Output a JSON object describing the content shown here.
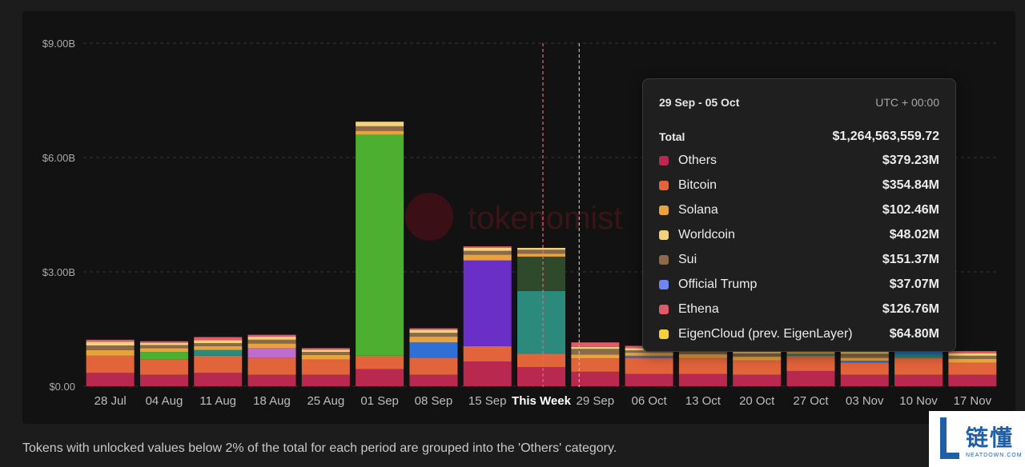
{
  "chart_data": {
    "type": "bar",
    "stacked": true,
    "y_ticks": [
      "$0.00",
      "$3.00B",
      "$6.00B",
      "$9.00B"
    ],
    "ylim": [
      0,
      9
    ],
    "y_unit": "billions USD",
    "grid": true,
    "categories": [
      "28 Jul",
      "04 Aug",
      "11 Aug",
      "18 Aug",
      "25 Aug",
      "01 Sep",
      "08 Sep",
      "15 Sep",
      "This Week",
      "29 Sep",
      "06 Oct",
      "13 Oct",
      "20 Oct",
      "27 Oct",
      "03 Nov",
      "10 Nov",
      "17 Nov"
    ],
    "current_category": "This Week",
    "watermark": "tokenomist",
    "series": [
      {
        "color": "#b9284f",
        "values": [
          0.35,
          0.3,
          0.35,
          0.3,
          0.3,
          0.45,
          0.3,
          0.65,
          0.5,
          0.38,
          0.32,
          0.32,
          0.3,
          0.4,
          0.3,
          0.3,
          0.3
        ]
      },
      {
        "color": "#e2643a",
        "values": [
          0.45,
          0.4,
          0.45,
          0.45,
          0.4,
          0.35,
          0.45,
          0.4,
          0.35,
          0.35,
          0.42,
          0.42,
          0.38,
          0.4,
          0.32,
          0.45,
          0.32
        ]
      },
      {
        "color": "#4caf2f",
        "values": [
          0,
          0.2,
          0,
          0,
          0,
          5.8,
          0,
          0,
          0,
          0,
          0,
          0,
          0,
          0,
          0,
          0,
          0
        ]
      },
      {
        "color": "#6a2fc7",
        "values": [
          0,
          0,
          0,
          0,
          0,
          0,
          0,
          2.25,
          0,
          0,
          0,
          0,
          0,
          0,
          0,
          0,
          0
        ]
      },
      {
        "color": "#2c8a7c",
        "values": [
          0,
          0,
          0.15,
          0,
          0,
          0,
          0,
          0,
          1.65,
          0,
          0,
          0,
          0,
          0.05,
          0,
          0.1,
          0
        ]
      },
      {
        "color": "#2f6fd6",
        "values": [
          0,
          0,
          0,
          0,
          0,
          0,
          0.4,
          0,
          0,
          0,
          0.06,
          0,
          0,
          0,
          0.05,
          0.12,
          0
        ]
      },
      {
        "color": "#2e4a2a",
        "values": [
          0,
          0,
          0,
          0,
          0,
          0,
          0,
          0,
          0.9,
          0,
          0,
          0,
          0,
          0,
          0,
          0,
          0
        ]
      },
      {
        "color": "#c06ccf",
        "values": [
          0,
          0,
          0,
          0.25,
          0,
          0,
          0,
          0,
          0,
          0,
          0,
          0,
          0,
          0,
          0,
          0,
          0
        ]
      },
      {
        "color": "#e8a33d",
        "values": [
          0.15,
          0.1,
          0.1,
          0.12,
          0.12,
          0.1,
          0.15,
          0.15,
          0.08,
          0.1,
          0.08,
          0.1,
          0.1,
          0.12,
          0.08,
          0.08,
          0.1
        ]
      },
      {
        "color": "#8a6a4a",
        "values": [
          0.12,
          0.08,
          0.08,
          0.1,
          0.08,
          0.12,
          0.1,
          0.1,
          0.1,
          0.15,
          0.06,
          0.1,
          0.08,
          0.06,
          0.1,
          0.08,
          0.08
        ]
      },
      {
        "color": "#f2d27a",
        "values": [
          0.1,
          0.06,
          0.08,
          0.08,
          0.06,
          0.12,
          0.08,
          0.08,
          0.05,
          0.05,
          0.06,
          0.06,
          0.06,
          0.06,
          0.06,
          0.06,
          0.06
        ]
      },
      {
        "color": "#e05a6a",
        "values": [
          0.05,
          0.04,
          0.08,
          0.05,
          0.04,
          0.0,
          0.04,
          0.04,
          0.0,
          0.12,
          0.06,
          0.06,
          0.1,
          0.04,
          0.04,
          0.04,
          0.06
        ]
      }
    ]
  },
  "tooltip": {
    "range": "29 Sep - 05 Oct",
    "timezone": "UTC + 00:00",
    "total_label": "Total",
    "total_value": "$1,264,563,559.72",
    "items": [
      {
        "name": "Others",
        "value": "$379.23M",
        "color": "#b9284f"
      },
      {
        "name": "Bitcoin",
        "value": "$354.84M",
        "color": "#e2643a"
      },
      {
        "name": "Solana",
        "value": "$102.46M",
        "color": "#e8a33d"
      },
      {
        "name": "Worldcoin",
        "value": "$48.02M",
        "color": "#f2d27a"
      },
      {
        "name": "Sui",
        "value": "$151.37M",
        "color": "#8a6a4a"
      },
      {
        "name": "Official Trump",
        "value": "$37.07M",
        "color": "#6f86f0"
      },
      {
        "name": "Ethena",
        "value": "$126.76M",
        "color": "#e05a6a"
      },
      {
        "name": "EigenCloud (prev. EigenLayer)",
        "value": "$64.80M",
        "color": "#f4d23a"
      }
    ]
  },
  "footnote": "Tokens with unlocked values below 2% of the total for each period are grouped into the 'Others' category.",
  "badge": {
    "cn": "链懂",
    "en": "NEATDOWN.COM"
  }
}
